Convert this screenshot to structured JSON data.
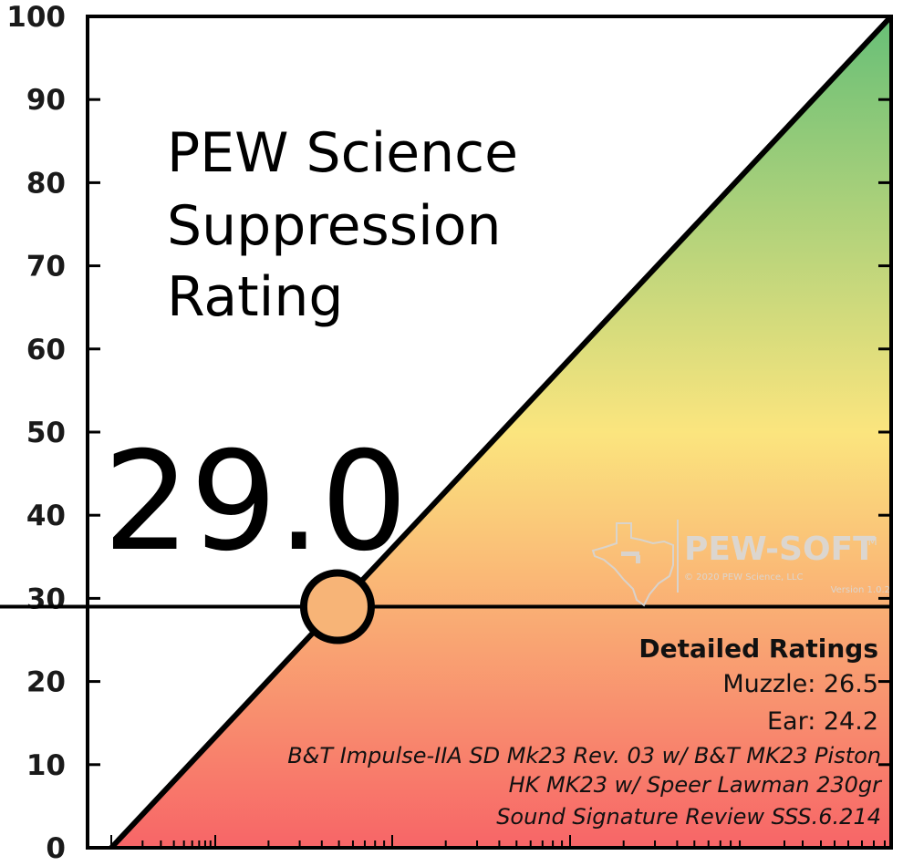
{
  "chart_data": {
    "type": "line",
    "title": [
      "PEW Science",
      "Suppression",
      "Rating"
    ],
    "rating_label": "29.0",
    "rating": 29.0,
    "ylim": [
      0,
      100
    ],
    "y_ticks": [
      "0",
      "10",
      "20",
      "30",
      "40",
      "50",
      "60",
      "70",
      "80",
      "90",
      "100"
    ],
    "diagonal": {
      "from": [
        0,
        0
      ],
      "to": [
        100,
        100
      ]
    },
    "marker": {
      "x": 29.0,
      "y": 29.0,
      "color": "#f7b477"
    },
    "gradient_colors": {
      "top": "#67bf77",
      "mid": "#fbe57e",
      "bottom": "#f76567"
    },
    "grid": false,
    "legend": "none"
  },
  "details": {
    "heading": "Detailed Ratings",
    "muzzle": "Muzzle: 26.5",
    "ear": "Ear: 24.2",
    "suppressor": "B&T Impulse-IIA SD Mk23 Rev. 03 w/ B&T MK23 Piston",
    "host": "HK MK23 w/ Speer Lawman 230gr",
    "review": "Sound Signature Review SSS.6.214"
  },
  "watermark": {
    "brand": "PEW-SOFT",
    "tm": "TM",
    "copyright": "© 2020 PEW Science, LLC",
    "version": "Version 1.0.2"
  }
}
